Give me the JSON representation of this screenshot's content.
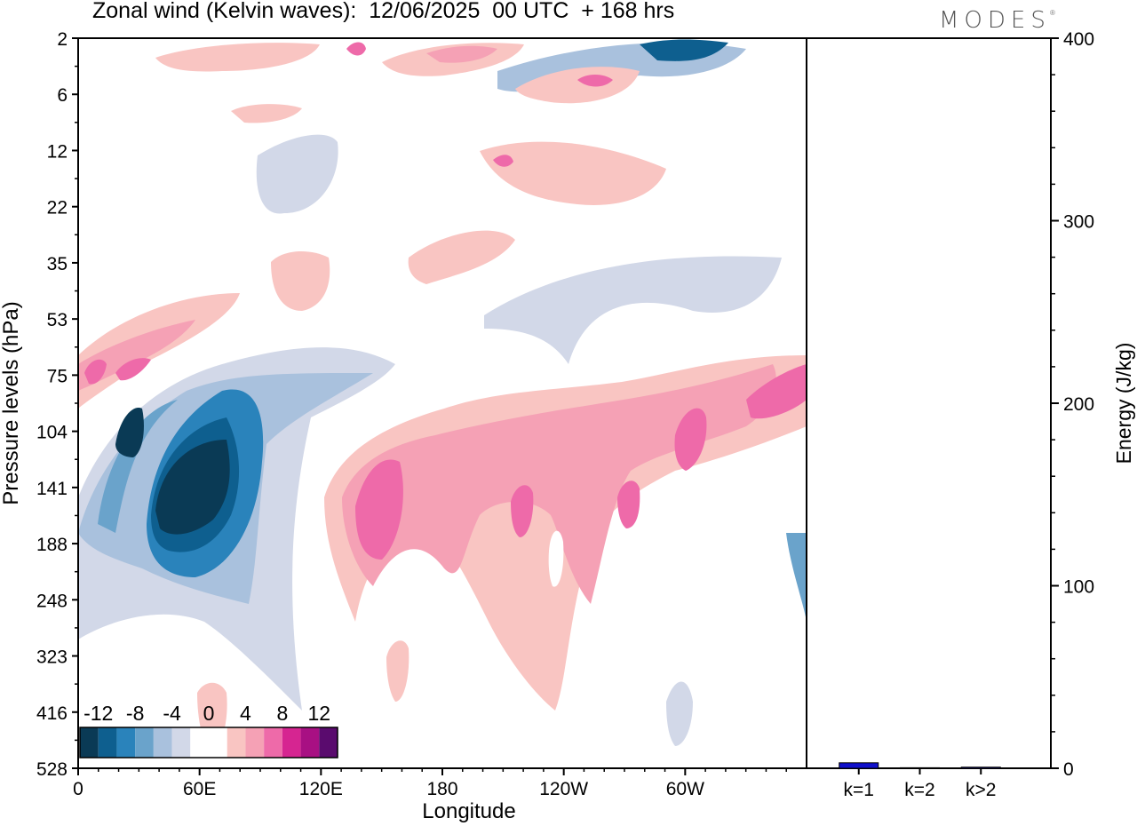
{
  "title": "Zonal wind (Kelvin waves):  12/06/2025  00 UTC  + 168 hrs",
  "brand": "MODES",
  "brand_mark": "®",
  "colors": {
    "axis": "#000000",
    "energy_bar": "#1010cc",
    "scale": [
      "#0a3a55",
      "#0e5f8f",
      "#2a83bb",
      "#6aa3cb",
      "#a9c1dd",
      "#d2d8e8",
      "#ffffff",
      "#ffffff",
      "#f9c5c2",
      "#f5a1b5",
      "#ee6aa9",
      "#d62591",
      "#a81083",
      "#5a0b6e"
    ]
  },
  "chart_data": [
    {
      "type": "heatmap",
      "title": "Zonal wind (Kelvin waves):  12/06/2025  00 UTC  + 168 hrs",
      "xlabel": "Longitude",
      "ylabel": "Pressure levels (hPa)",
      "x_ticks": [
        "0",
        "60E",
        "120E",
        "180",
        "120W",
        "60W"
      ],
      "y_ticks": [
        "2",
        "6",
        "12",
        "22",
        "35",
        "53",
        "75",
        "104",
        "141",
        "188",
        "248",
        "323",
        "416",
        "528"
      ],
      "colorbar_labels": [
        "-12",
        "-8",
        "-4",
        "0",
        "4",
        "8",
        "12"
      ],
      "colorbar_levels": [
        -14,
        -12,
        -10,
        -8,
        -6,
        -4,
        -2,
        0,
        2,
        4,
        6,
        8,
        10,
        12,
        14
      ],
      "features": [
        {
          "lon": 55,
          "level": "141",
          "value": -14
        },
        {
          "lon": 28,
          "level": "104",
          "value": -9
        },
        {
          "lon": 78,
          "level": "141",
          "value": -8
        },
        {
          "lon": 115,
          "level": "104",
          "value": -5
        },
        {
          "lon": 9,
          "level": "75",
          "value": 6
        },
        {
          "lon": 35,
          "level": "75",
          "value": 7
        },
        {
          "lon": 155,
          "level": "141",
          "value": 8
        },
        {
          "lon": 225,
          "level": "141",
          "value": 8
        },
        {
          "lon": 270,
          "level": "141",
          "value": 8
        },
        {
          "lon": 308,
          "level": "104",
          "value": 8
        },
        {
          "lon": 345,
          "level": "75",
          "value": 8
        },
        {
          "lon": 355,
          "level": "188",
          "value": -7
        },
        {
          "lon": 305,
          "level": "2",
          "value": -9
        },
        {
          "lon": 140,
          "level": "2",
          "value": 7
        }
      ]
    },
    {
      "type": "bar",
      "ylabel": "Energy (J/kg)",
      "categories": [
        "k=1",
        "k=2",
        "k>2"
      ],
      "values": [
        3,
        0.3,
        0.6
      ],
      "ylim": [
        0,
        400
      ],
      "y_ticks": [
        "0",
        "100",
        "200",
        "300",
        "400"
      ]
    }
  ]
}
